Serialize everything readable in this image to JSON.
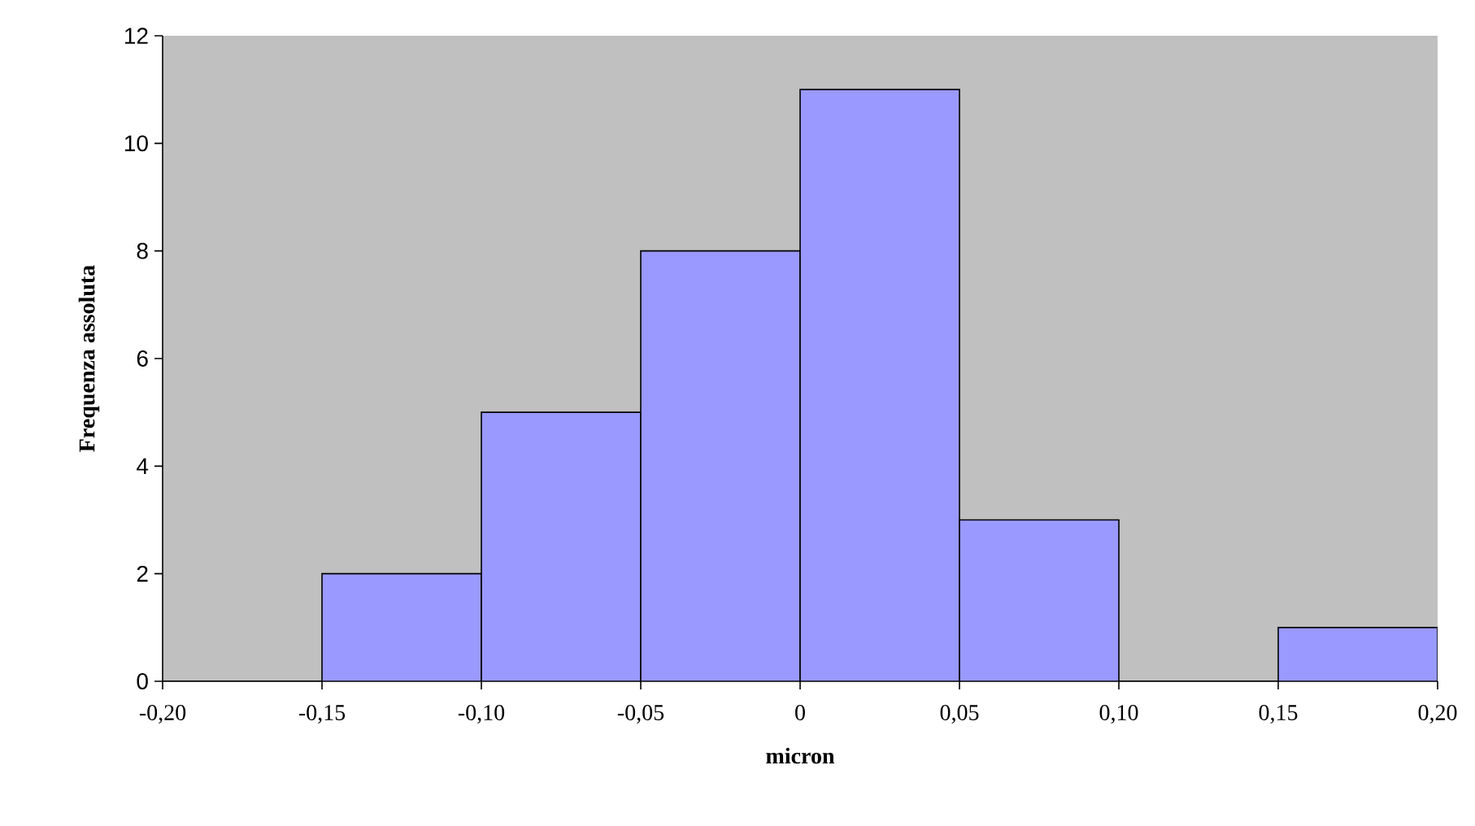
{
  "chart_data": {
    "type": "histogram",
    "xlabel": "micron",
    "ylabel": "Frequenza assoluta",
    "bins": [
      -0.2,
      -0.15,
      -0.1,
      -0.05,
      0,
      0.05,
      0.1,
      0.15,
      0.2
    ],
    "values": [
      0,
      2,
      5,
      8,
      11,
      3,
      0,
      1
    ],
    "color": "#9999ff",
    "xlim": [
      -0.2,
      0.2
    ],
    "xticks": [
      {
        "value": -0.2,
        "label": "-0,20"
      },
      {
        "value": -0.15,
        "label": "-0,15"
      },
      {
        "value": -0.1,
        "label": "-0,10"
      },
      {
        "value": -0.05,
        "label": "-0,05"
      },
      0,
      {
        "value": 0.05,
        "label": "0,05"
      },
      {
        "value": 0.1,
        "label": "0,10"
      },
      {
        "value": 0.15,
        "label": "0,15"
      },
      {
        "value": 0.2,
        "label": "0,20"
      }
    ],
    "ylim": [
      0,
      12
    ],
    "yticks": [
      0,
      2,
      4,
      6,
      8,
      10,
      12
    ]
  }
}
